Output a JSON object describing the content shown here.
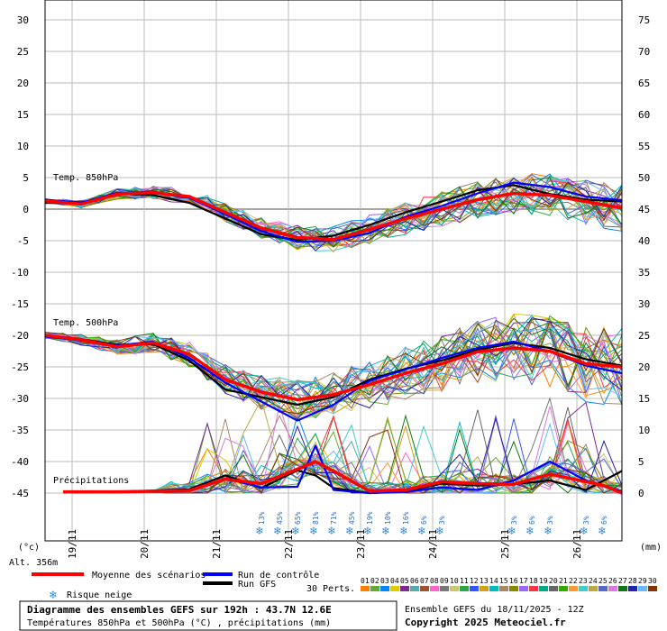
{
  "chart_data": {
    "type": "line",
    "y_left_ticks": [
      30,
      25,
      20,
      15,
      10,
      5,
      0,
      -5,
      -10,
      -15,
      -20,
      -25,
      -30,
      -35,
      -40,
      -45
    ],
    "y_right_ticks": [
      75,
      70,
      65,
      60,
      55,
      50,
      45,
      40,
      35,
      30,
      25,
      20,
      15,
      10,
      5,
      0
    ],
    "y_left_unit": "(°c)",
    "y_right_unit": "(mm)",
    "altitude": "Alt. 356m",
    "x_ticks": [
      {
        "h": 9,
        "label": "19/11"
      },
      {
        "h": 33,
        "label": "20/11"
      },
      {
        "h": 57,
        "label": "21/11"
      },
      {
        "h": 81,
        "label": "22/11"
      },
      {
        "h": 105,
        "label": "23/11"
      },
      {
        "h": 129,
        "label": "24/11"
      },
      {
        "h": 153,
        "label": "25/11"
      },
      {
        "h": 177,
        "label": "26/11"
      }
    ],
    "x_range_hours": [
      0,
      192
    ],
    "section_labels": {
      "t850": "Temp. 850hPa",
      "t500": "Temp. 500hPa",
      "precip": "Précipitations"
    },
    "snow_risk": [
      {
        "h": 72,
        "pct": "13%"
      },
      {
        "h": 78,
        "pct": "45%"
      },
      {
        "h": 84,
        "pct": "65%"
      },
      {
        "h": 90,
        "pct": "81%"
      },
      {
        "h": 96,
        "pct": "71%"
      },
      {
        "h": 102,
        "pct": "45%"
      },
      {
        "h": 108,
        "pct": "19%"
      },
      {
        "h": 114,
        "pct": "10%"
      },
      {
        "h": 120,
        "pct": "16%"
      },
      {
        "h": 126,
        "pct": "6%"
      },
      {
        "h": 132,
        "pct": "3%"
      },
      {
        "h": 156,
        "pct": "3%"
      },
      {
        "h": 162,
        "pct": "6%"
      },
      {
        "h": 168,
        "pct": "3%"
      },
      {
        "h": 180,
        "pct": "3%"
      },
      {
        "h": 186,
        "pct": "6%"
      }
    ],
    "series": [
      {
        "name": "Moyenne des scénarios",
        "color": "#ff0000",
        "t850": [
          [
            0,
            1.3
          ],
          [
            12,
            0.8
          ],
          [
            24,
            2.4
          ],
          [
            36,
            2.6
          ],
          [
            48,
            2.0
          ],
          [
            60,
            -0.5
          ],
          [
            72,
            -3.0
          ],
          [
            84,
            -4.5
          ],
          [
            96,
            -4.8
          ],
          [
            108,
            -3.2
          ],
          [
            120,
            -1.5
          ],
          [
            132,
            0.0
          ],
          [
            144,
            1.5
          ],
          [
            156,
            2.5
          ],
          [
            168,
            2.2
          ],
          [
            180,
            1.2
          ],
          [
            192,
            0.2
          ]
        ],
        "t500": [
          [
            0,
            -20.0
          ],
          [
            12,
            -20.7
          ],
          [
            24,
            -21.8
          ],
          [
            36,
            -21.2
          ],
          [
            48,
            -23.0
          ],
          [
            60,
            -27.0
          ],
          [
            72,
            -29.0
          ],
          [
            84,
            -30.2
          ],
          [
            96,
            -29.4
          ],
          [
            108,
            -27.8
          ],
          [
            120,
            -26.0
          ],
          [
            132,
            -24.5
          ],
          [
            144,
            -22.6
          ],
          [
            156,
            -22.0
          ],
          [
            168,
            -22.5
          ],
          [
            180,
            -24.5
          ],
          [
            192,
            -25.0
          ]
        ],
        "precip": [
          [
            6,
            0.2
          ],
          [
            24,
            0.2
          ],
          [
            48,
            0.4
          ],
          [
            60,
            2.2
          ],
          [
            72,
            1.5
          ],
          [
            84,
            3.8
          ],
          [
            90,
            5.0
          ],
          [
            96,
            3.5
          ],
          [
            108,
            0.3
          ],
          [
            120,
            0.5
          ],
          [
            132,
            1.8
          ],
          [
            144,
            1.5
          ],
          [
            156,
            1.4
          ],
          [
            168,
            3.0
          ],
          [
            180,
            1.8
          ],
          [
            186,
            1.2
          ],
          [
            192,
            0.0
          ]
        ]
      },
      {
        "name": "Run de contrôle",
        "color": "#0000ff",
        "t850": [
          [
            0,
            1.5
          ],
          [
            12,
            1.0
          ],
          [
            24,
            2.6
          ],
          [
            36,
            2.6
          ],
          [
            48,
            1.8
          ],
          [
            60,
            -0.8
          ],
          [
            72,
            -3.5
          ],
          [
            84,
            -5.2
          ],
          [
            96,
            -5.0
          ],
          [
            108,
            -3.8
          ],
          [
            120,
            -1.2
          ],
          [
            132,
            0.5
          ],
          [
            144,
            2.5
          ],
          [
            156,
            4.2
          ],
          [
            168,
            3.5
          ],
          [
            180,
            2.0
          ],
          [
            192,
            1.4
          ]
        ],
        "t500": [
          [
            0,
            -20.2
          ],
          [
            12,
            -20.8
          ],
          [
            24,
            -21.6
          ],
          [
            36,
            -21.0
          ],
          [
            48,
            -23.6
          ],
          [
            60,
            -27.5
          ],
          [
            72,
            -30.5
          ],
          [
            84,
            -33.5
          ],
          [
            96,
            -31.0
          ],
          [
            108,
            -27.2
          ],
          [
            120,
            -25.4
          ],
          [
            132,
            -23.6
          ],
          [
            144,
            -22.0
          ],
          [
            156,
            -21.0
          ],
          [
            168,
            -22.6
          ],
          [
            180,
            -24.8
          ],
          [
            192,
            -26.0
          ]
        ],
        "precip": [
          [
            6,
            0.2
          ],
          [
            24,
            0.2
          ],
          [
            48,
            0.3
          ],
          [
            60,
            2.3
          ],
          [
            72,
            0.9
          ],
          [
            84,
            1.0
          ],
          [
            90,
            7.5
          ],
          [
            96,
            0.5
          ],
          [
            108,
            0.0
          ],
          [
            120,
            0.2
          ],
          [
            132,
            0.9
          ],
          [
            144,
            0.5
          ],
          [
            156,
            2.0
          ],
          [
            168,
            5.0
          ],
          [
            180,
            2.0
          ],
          [
            192,
            0.3
          ]
        ]
      },
      {
        "name": "Run GFS",
        "color": "#000000",
        "t850": [
          [
            0,
            1.0
          ],
          [
            12,
            0.9
          ],
          [
            24,
            2.5
          ],
          [
            36,
            2.2
          ],
          [
            48,
            1.0
          ],
          [
            60,
            -1.5
          ],
          [
            72,
            -4.0
          ],
          [
            84,
            -4.9
          ],
          [
            96,
            -4.2
          ],
          [
            108,
            -2.5
          ],
          [
            120,
            -0.5
          ],
          [
            132,
            1.2
          ],
          [
            144,
            3.0
          ],
          [
            156,
            3.8
          ],
          [
            168,
            2.4
          ],
          [
            180,
            1.5
          ],
          [
            192,
            1.2
          ]
        ],
        "t500": [
          [
            0,
            -20.0
          ],
          [
            12,
            -20.6
          ],
          [
            24,
            -21.5
          ],
          [
            36,
            -21.4
          ],
          [
            48,
            -24.0
          ],
          [
            60,
            -28.6
          ],
          [
            72,
            -29.8
          ],
          [
            84,
            -31.0
          ],
          [
            96,
            -29.8
          ],
          [
            108,
            -27.0
          ],
          [
            120,
            -25.3
          ],
          [
            132,
            -24.0
          ],
          [
            144,
            -22.3
          ],
          [
            156,
            -21.2
          ],
          [
            168,
            -22.0
          ],
          [
            180,
            -23.8
          ],
          [
            192,
            -24.8
          ]
        ],
        "precip": [
          [
            6,
            0.2
          ],
          [
            24,
            0.2
          ],
          [
            48,
            0.6
          ],
          [
            60,
            2.8
          ],
          [
            72,
            0.8
          ],
          [
            84,
            3.6
          ],
          [
            90,
            2.8
          ],
          [
            96,
            0.8
          ],
          [
            108,
            0.0
          ],
          [
            120,
            0.3
          ],
          [
            132,
            1.5
          ],
          [
            144,
            1.2
          ],
          [
            156,
            1.4
          ],
          [
            168,
            2.0
          ],
          [
            180,
            0.5
          ],
          [
            192,
            3.5
          ]
        ]
      }
    ],
    "perturbation_count": 30
  },
  "legend": {
    "mean_label": "Moyenne des scénarios",
    "control_label": "Run de contrôle",
    "gfs_label": "Run GFS",
    "snow_label": "Risque neige",
    "perts_label": "30 Perts.",
    "pert_numbers": [
      "01",
      "02",
      "03",
      "04",
      "05",
      "06",
      "07",
      "08",
      "09",
      "10",
      "11",
      "12",
      "13",
      "14",
      "15",
      "16",
      "17",
      "18",
      "19",
      "20",
      "21",
      "22",
      "23",
      "24",
      "25",
      "26",
      "27",
      "28",
      "29",
      "30"
    ],
    "pert_colors": [
      "#ff7f00",
      "#66aa33",
      "#0088ff",
      "#ddcc00",
      "#7a2a9a",
      "#55aaaa",
      "#a0522d",
      "#ff66cc",
      "#777777",
      "#c8c870",
      "#2aa84a",
      "#3355ff",
      "#d4a017",
      "#00bbbb",
      "#aa8866",
      "#888800",
      "#9966ff",
      "#ff3344",
      "#00aa88",
      "#666666",
      "#33aa00",
      "#ff9933",
      "#44cccc",
      "#bbaa44",
      "#5566cc",
      "#dd77dd",
      "#117711",
      "#2222aa",
      "#66bbff",
      "#883300"
    ]
  },
  "footer": {
    "title_line": "Diagramme des ensembles GEFS sur 192h : 43.7N 12.6E",
    "subtitle_line": "Températures 850hPa et 500hPa (°C) , précipitations (mm)",
    "run_line": "Ensemble GEFS du 18/11/2025 - 12Z",
    "copyright": "Copyright 2025 Meteociel.fr"
  }
}
